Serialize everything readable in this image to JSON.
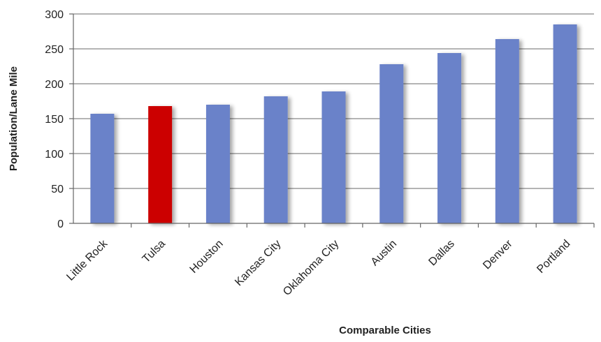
{
  "chart_data": {
    "type": "bar",
    "title": "",
    "xlabel": "Comparable Cities",
    "ylabel": "Population/Lane Mile",
    "ylim": [
      0,
      300
    ],
    "yticks": [
      0,
      50,
      100,
      150,
      200,
      250,
      300
    ],
    "grid": true,
    "categories": [
      "Little Rock",
      "Tulsa",
      "Houston",
      "Kansas City",
      "Oklahoma City",
      "Austin",
      "Dallas",
      "Denver",
      "Portland"
    ],
    "values": [
      157,
      168,
      170,
      182,
      189,
      228,
      244,
      264,
      285
    ],
    "highlight_category": "Tulsa",
    "colors": {
      "bar": "#6b82c9",
      "highlight": "#cc0000",
      "grid": "#888888",
      "axis": "#666666"
    }
  }
}
